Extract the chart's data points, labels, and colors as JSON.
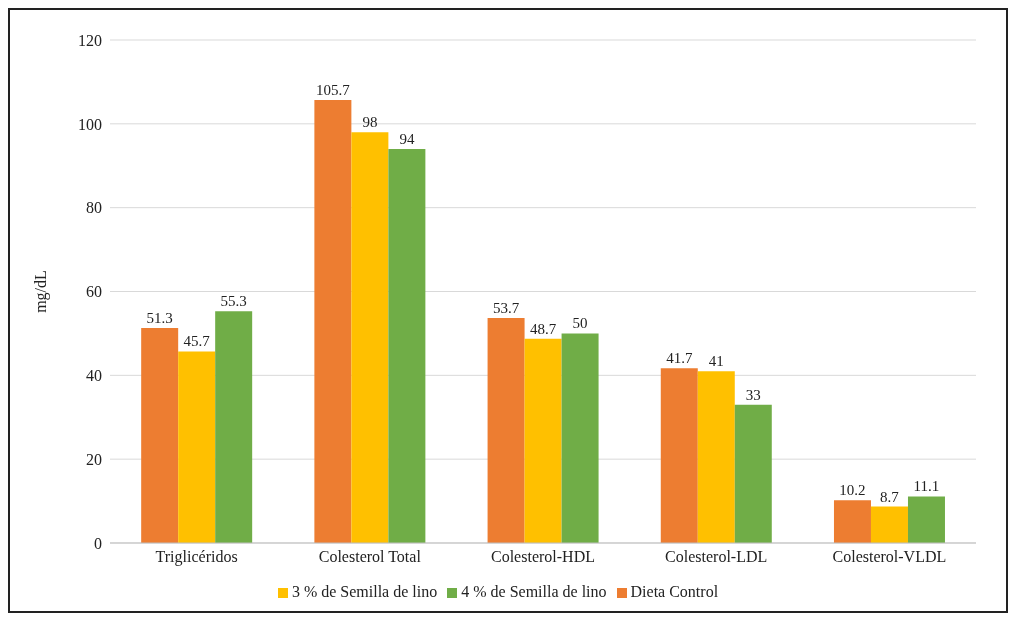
{
  "chart_data": {
    "type": "bar",
    "ylabel": "mg/dL",
    "categories": [
      "Triglicéridos",
      "Colesterol Total",
      "Colesterol-HDL",
      "Colesterol-LDL",
      "Colesterol-VLDL"
    ],
    "series": [
      {
        "name": "Dieta Control",
        "color": "#ed7d31",
        "values": [
          51.3,
          105.7,
          53.7,
          41.7,
          10.2
        ]
      },
      {
        "name": "3 % de Semilla de lino",
        "color": "#ffc000",
        "values": [
          45.7,
          98,
          48.7,
          41,
          8.7
        ]
      },
      {
        "name": "4 % de Semilla de lino",
        "color": "#70ad47",
        "values": [
          55.3,
          94,
          50,
          33,
          11.1
        ]
      }
    ],
    "ylim": [
      0,
      120
    ],
    "yticks": [
      0,
      20,
      40,
      60,
      80,
      100,
      120
    ],
    "grid": "y",
    "legend": "bottom",
    "data_labels": true
  }
}
